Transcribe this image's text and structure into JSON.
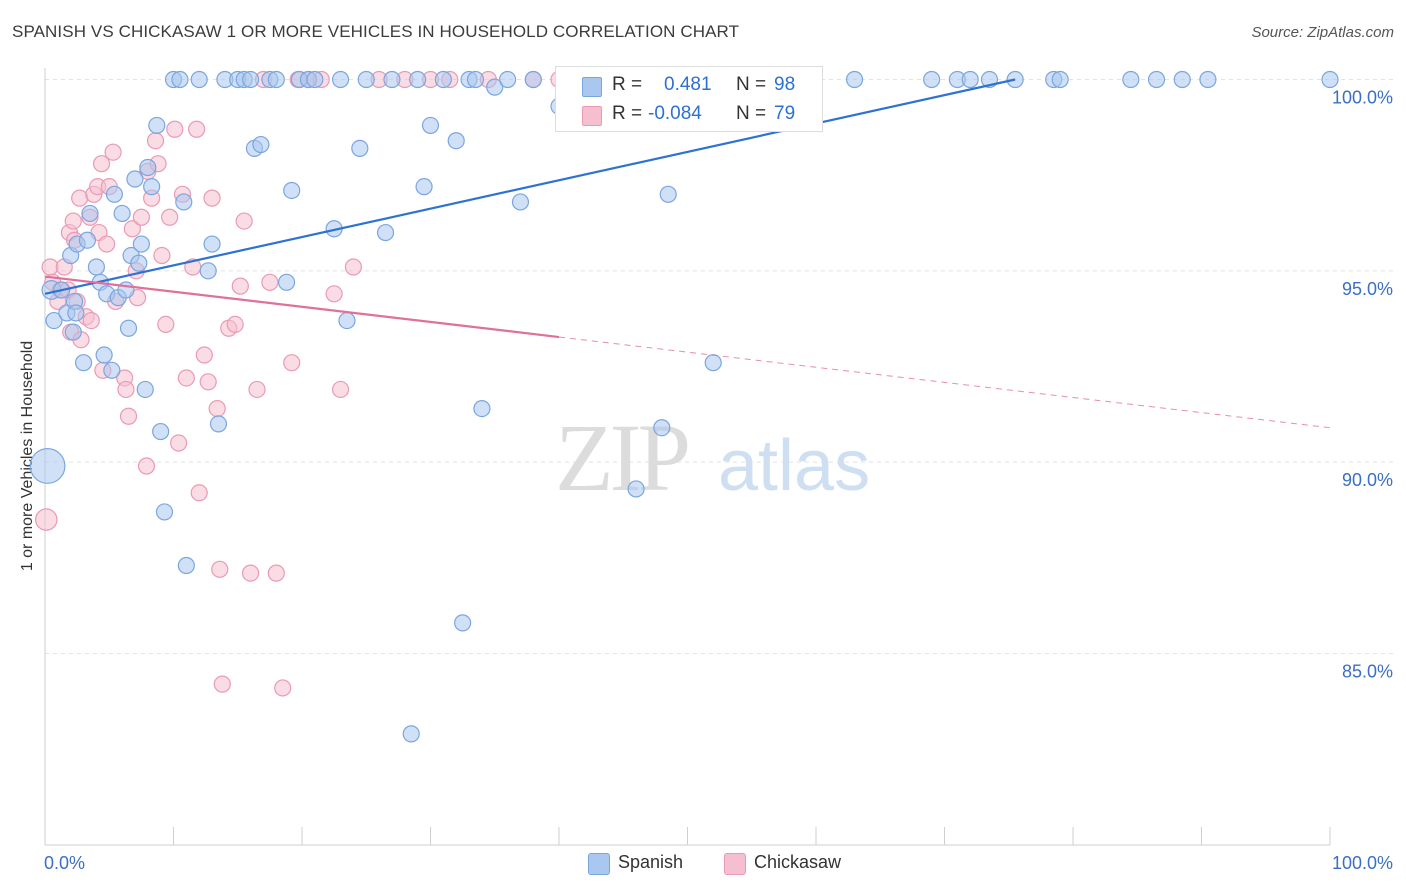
{
  "title": "SPANISH VS CHICKASAW 1 OR MORE VEHICLES IN HOUSEHOLD CORRELATION CHART",
  "source": "Source: ZipAtlas.com",
  "watermark": {
    "zip": "ZIP",
    "atlas": "atlas"
  },
  "legend": {
    "spanish": {
      "r_label": "R =",
      "r_value": "0.481",
      "n_label": "N =",
      "n_value": "98"
    },
    "chickasaw": {
      "r_label": "R =",
      "r_value": "-0.084",
      "n_label": "N =",
      "n_value": "79"
    }
  },
  "colors": {
    "spanish_fill": "#a9c7ef",
    "spanish_stroke": "#7aa6e0",
    "spanish_line": "#2e72d2",
    "chickasaw_fill": "#f6bfd0",
    "chickasaw_stroke": "#ea9ab4",
    "chickasaw_line": "#e0709a",
    "tick_label": "#3a6fc4",
    "grid": "#e2e2e2"
  },
  "chart_data": {
    "type": "scatter",
    "title": "SPANISH VS CHICKASAW 1 OR MORE VEHICLES IN HOUSEHOLD CORRELATION CHART",
    "xlabel": "",
    "ylabel": "1 or more Vehicles in Household",
    "xlim": [
      0,
      100
    ],
    "ylim": [
      80.0,
      100.5
    ],
    "x_tick_labels": [
      "0.0%",
      "100.0%"
    ],
    "y_ticks": [
      85.0,
      90.0,
      95.0,
      100.0
    ],
    "y_tick_labels": [
      "85.0%",
      "90.0%",
      "95.0%",
      "100.0%"
    ],
    "grid": true,
    "legend_position": "top-center",
    "series": [
      {
        "name": "Spanish",
        "r": 0.481,
        "n": 98,
        "trend": {
          "x": [
            0,
            75.5
          ],
          "y": [
            94.4,
            100.0
          ],
          "dashed_to": 75.5
        },
        "points": [
          [
            0.2,
            89.9,
            26
          ],
          [
            0.5,
            94.5,
            14
          ],
          [
            0.7,
            93.7,
            12
          ],
          [
            1.3,
            94.5,
            12
          ],
          [
            1.7,
            93.9,
            12
          ],
          [
            2.0,
            95.4,
            12
          ],
          [
            2.2,
            93.4,
            12
          ],
          [
            2.3,
            94.2,
            12
          ],
          [
            2.4,
            93.9,
            12
          ],
          [
            2.5,
            95.7,
            12
          ],
          [
            3.0,
            92.6,
            12
          ],
          [
            3.3,
            95.8,
            12
          ],
          [
            3.5,
            96.5,
            12
          ],
          [
            4.0,
            95.1,
            12
          ],
          [
            4.3,
            94.7,
            12
          ],
          [
            4.6,
            92.8,
            12
          ],
          [
            4.8,
            94.4,
            12
          ],
          [
            5.2,
            92.4,
            12
          ],
          [
            5.4,
            97.0,
            12
          ],
          [
            5.7,
            94.3,
            12
          ],
          [
            6.0,
            96.5,
            12
          ],
          [
            6.3,
            94.5,
            12
          ],
          [
            6.5,
            93.5,
            12
          ],
          [
            6.7,
            95.4,
            12
          ],
          [
            7.0,
            97.4,
            12
          ],
          [
            7.3,
            95.2,
            12
          ],
          [
            7.5,
            95.7,
            12
          ],
          [
            7.8,
            91.9,
            12
          ],
          [
            8.0,
            97.7,
            12
          ],
          [
            8.3,
            97.2,
            12
          ],
          [
            8.7,
            98.8,
            12
          ],
          [
            9.0,
            90.8,
            12
          ],
          [
            9.3,
            88.7,
            12
          ],
          [
            10.0,
            100.0,
            12
          ],
          [
            10.5,
            100.0,
            12
          ],
          [
            10.8,
            96.8,
            12
          ],
          [
            11.0,
            87.3,
            12
          ],
          [
            12.0,
            100.0,
            12
          ],
          [
            12.7,
            95.0,
            12
          ],
          [
            13.0,
            95.7,
            12
          ],
          [
            13.5,
            91.0,
            12
          ],
          [
            14.0,
            100.0,
            12
          ],
          [
            15.0,
            100.0,
            12
          ],
          [
            15.5,
            100.0,
            12
          ],
          [
            16.0,
            100.0,
            12
          ],
          [
            16.3,
            98.2,
            12
          ],
          [
            16.8,
            98.3,
            12
          ],
          [
            17.5,
            100.0,
            12
          ],
          [
            18.0,
            100.0,
            12
          ],
          [
            18.8,
            94.7,
            12
          ],
          [
            19.2,
            97.1,
            12
          ],
          [
            19.8,
            100.0,
            12
          ],
          [
            20.5,
            100.0,
            12
          ],
          [
            21.0,
            100.0,
            12
          ],
          [
            22.5,
            96.1,
            12
          ],
          [
            23.0,
            100.0,
            12
          ],
          [
            23.5,
            93.7,
            12
          ],
          [
            24.5,
            98.2,
            12
          ],
          [
            25.0,
            100.0,
            12
          ],
          [
            26.5,
            96.0,
            12
          ],
          [
            27.0,
            100.0,
            12
          ],
          [
            28.5,
            82.9,
            12
          ],
          [
            29.0,
            100.0,
            12
          ],
          [
            29.5,
            97.2,
            12
          ],
          [
            30.0,
            98.8,
            12
          ],
          [
            31.0,
            100.0,
            12
          ],
          [
            32.0,
            98.4,
            12
          ],
          [
            32.5,
            85.8,
            12
          ],
          [
            33.0,
            100.0,
            12
          ],
          [
            33.5,
            100.0,
            12
          ],
          [
            34.0,
            91.4,
            12
          ],
          [
            35.0,
            99.8,
            12
          ],
          [
            36.0,
            100.0,
            12
          ],
          [
            37.0,
            96.8,
            12
          ],
          [
            38.0,
            100.0,
            12
          ],
          [
            40.0,
            99.3,
            12
          ],
          [
            41.0,
            100.0,
            12
          ],
          [
            43.0,
            100.0,
            12
          ],
          [
            46.0,
            89.3,
            12
          ],
          [
            47.0,
            100.0,
            12
          ],
          [
            48.0,
            90.9,
            12
          ],
          [
            48.5,
            97.0,
            12
          ],
          [
            50.0,
            100.0,
            12
          ],
          [
            52.0,
            92.6,
            12
          ],
          [
            54.0,
            100.0,
            12
          ],
          [
            56.0,
            100.0,
            12
          ],
          [
            58.0,
            100.0,
            12
          ],
          [
            63.0,
            100.0,
            12
          ],
          [
            69.0,
            100.0,
            12
          ],
          [
            71.0,
            100.0,
            12
          ],
          [
            72.0,
            100.0,
            12
          ],
          [
            73.5,
            100.0,
            12
          ],
          [
            75.5,
            100.0,
            12
          ],
          [
            78.5,
            100.0,
            12
          ],
          [
            79.0,
            100.0,
            12
          ],
          [
            84.5,
            100.0,
            12
          ],
          [
            86.5,
            100.0,
            12
          ],
          [
            88.5,
            100.0,
            12
          ],
          [
            90.5,
            100.0,
            12
          ],
          [
            100.0,
            100.0,
            12
          ]
        ]
      },
      {
        "name": "Chickasaw",
        "r": -0.084,
        "n": 79,
        "trend": {
          "x": [
            0,
            100
          ],
          "y": [
            94.85,
            90.9
          ],
          "solid_to": 40.0
        },
        "points": [
          [
            0.1,
            88.5,
            16
          ],
          [
            0.4,
            95.1,
            12
          ],
          [
            0.6,
            94.7,
            12
          ],
          [
            1.0,
            94.2,
            12
          ],
          [
            1.2,
            94.5,
            12
          ],
          [
            1.5,
            95.1,
            12
          ],
          [
            1.8,
            94.5,
            12
          ],
          [
            1.9,
            96.0,
            12
          ],
          [
            2.0,
            93.4,
            12
          ],
          [
            2.2,
            96.3,
            12
          ],
          [
            2.3,
            95.8,
            12
          ],
          [
            2.5,
            94.2,
            12
          ],
          [
            2.7,
            96.9,
            12
          ],
          [
            2.8,
            93.2,
            12
          ],
          [
            3.2,
            93.8,
            12
          ],
          [
            3.5,
            96.4,
            12
          ],
          [
            3.6,
            93.7,
            12
          ],
          [
            3.8,
            97.0,
            12
          ],
          [
            4.1,
            97.2,
            12
          ],
          [
            4.2,
            96.0,
            12
          ],
          [
            4.4,
            97.8,
            12
          ],
          [
            4.5,
            92.4,
            12
          ],
          [
            4.8,
            95.7,
            12
          ],
          [
            5.0,
            97.2,
            12
          ],
          [
            5.3,
            98.1,
            12
          ],
          [
            5.5,
            94.2,
            12
          ],
          [
            6.2,
            92.2,
            12
          ],
          [
            6.3,
            91.9,
            12
          ],
          [
            6.5,
            91.2,
            12
          ],
          [
            6.8,
            96.1,
            12
          ],
          [
            7.1,
            95.0,
            12
          ],
          [
            7.2,
            94.3,
            12
          ],
          [
            7.5,
            96.4,
            12
          ],
          [
            7.9,
            89.9,
            12
          ],
          [
            8.0,
            97.6,
            12
          ],
          [
            8.3,
            96.9,
            12
          ],
          [
            8.6,
            98.4,
            12
          ],
          [
            8.8,
            97.8,
            12
          ],
          [
            9.1,
            95.4,
            12
          ],
          [
            9.4,
            93.6,
            12
          ],
          [
            9.7,
            96.4,
            12
          ],
          [
            10.1,
            98.7,
            12
          ],
          [
            10.4,
            90.5,
            12
          ],
          [
            10.7,
            97.0,
            12
          ],
          [
            11.0,
            92.2,
            12
          ],
          [
            11.5,
            95.1,
            12
          ],
          [
            11.8,
            98.7,
            12
          ],
          [
            12.0,
            89.2,
            12
          ],
          [
            12.4,
            92.8,
            12
          ],
          [
            12.7,
            92.1,
            12
          ],
          [
            13.0,
            96.9,
            12
          ],
          [
            13.4,
            91.4,
            12
          ],
          [
            13.6,
            87.2,
            12
          ],
          [
            13.8,
            84.2,
            12
          ],
          [
            14.3,
            93.5,
            12
          ],
          [
            14.8,
            93.6,
            12
          ],
          [
            15.2,
            94.6,
            12
          ],
          [
            15.5,
            96.3,
            12
          ],
          [
            16.0,
            87.1,
            12
          ],
          [
            16.5,
            91.9,
            12
          ],
          [
            17.0,
            100.0,
            12
          ],
          [
            17.5,
            94.7,
            12
          ],
          [
            18.0,
            87.1,
            12
          ],
          [
            18.5,
            84.1,
            12
          ],
          [
            19.2,
            92.6,
            12
          ],
          [
            19.7,
            100.0,
            12
          ],
          [
            20.5,
            100.0,
            12
          ],
          [
            21.5,
            100.0,
            12
          ],
          [
            22.5,
            94.4,
            12
          ],
          [
            23.0,
            91.9,
            12
          ],
          [
            24.0,
            95.1,
            12
          ],
          [
            26.0,
            100.0,
            12
          ],
          [
            28.0,
            100.0,
            12
          ],
          [
            30.0,
            100.0,
            12
          ],
          [
            31.5,
            100.0,
            12
          ],
          [
            34.5,
            100.0,
            12
          ],
          [
            38.0,
            100.0,
            12
          ],
          [
            40.0,
            100.0,
            12
          ],
          [
            46.0,
            100.0,
            12
          ]
        ]
      }
    ]
  }
}
